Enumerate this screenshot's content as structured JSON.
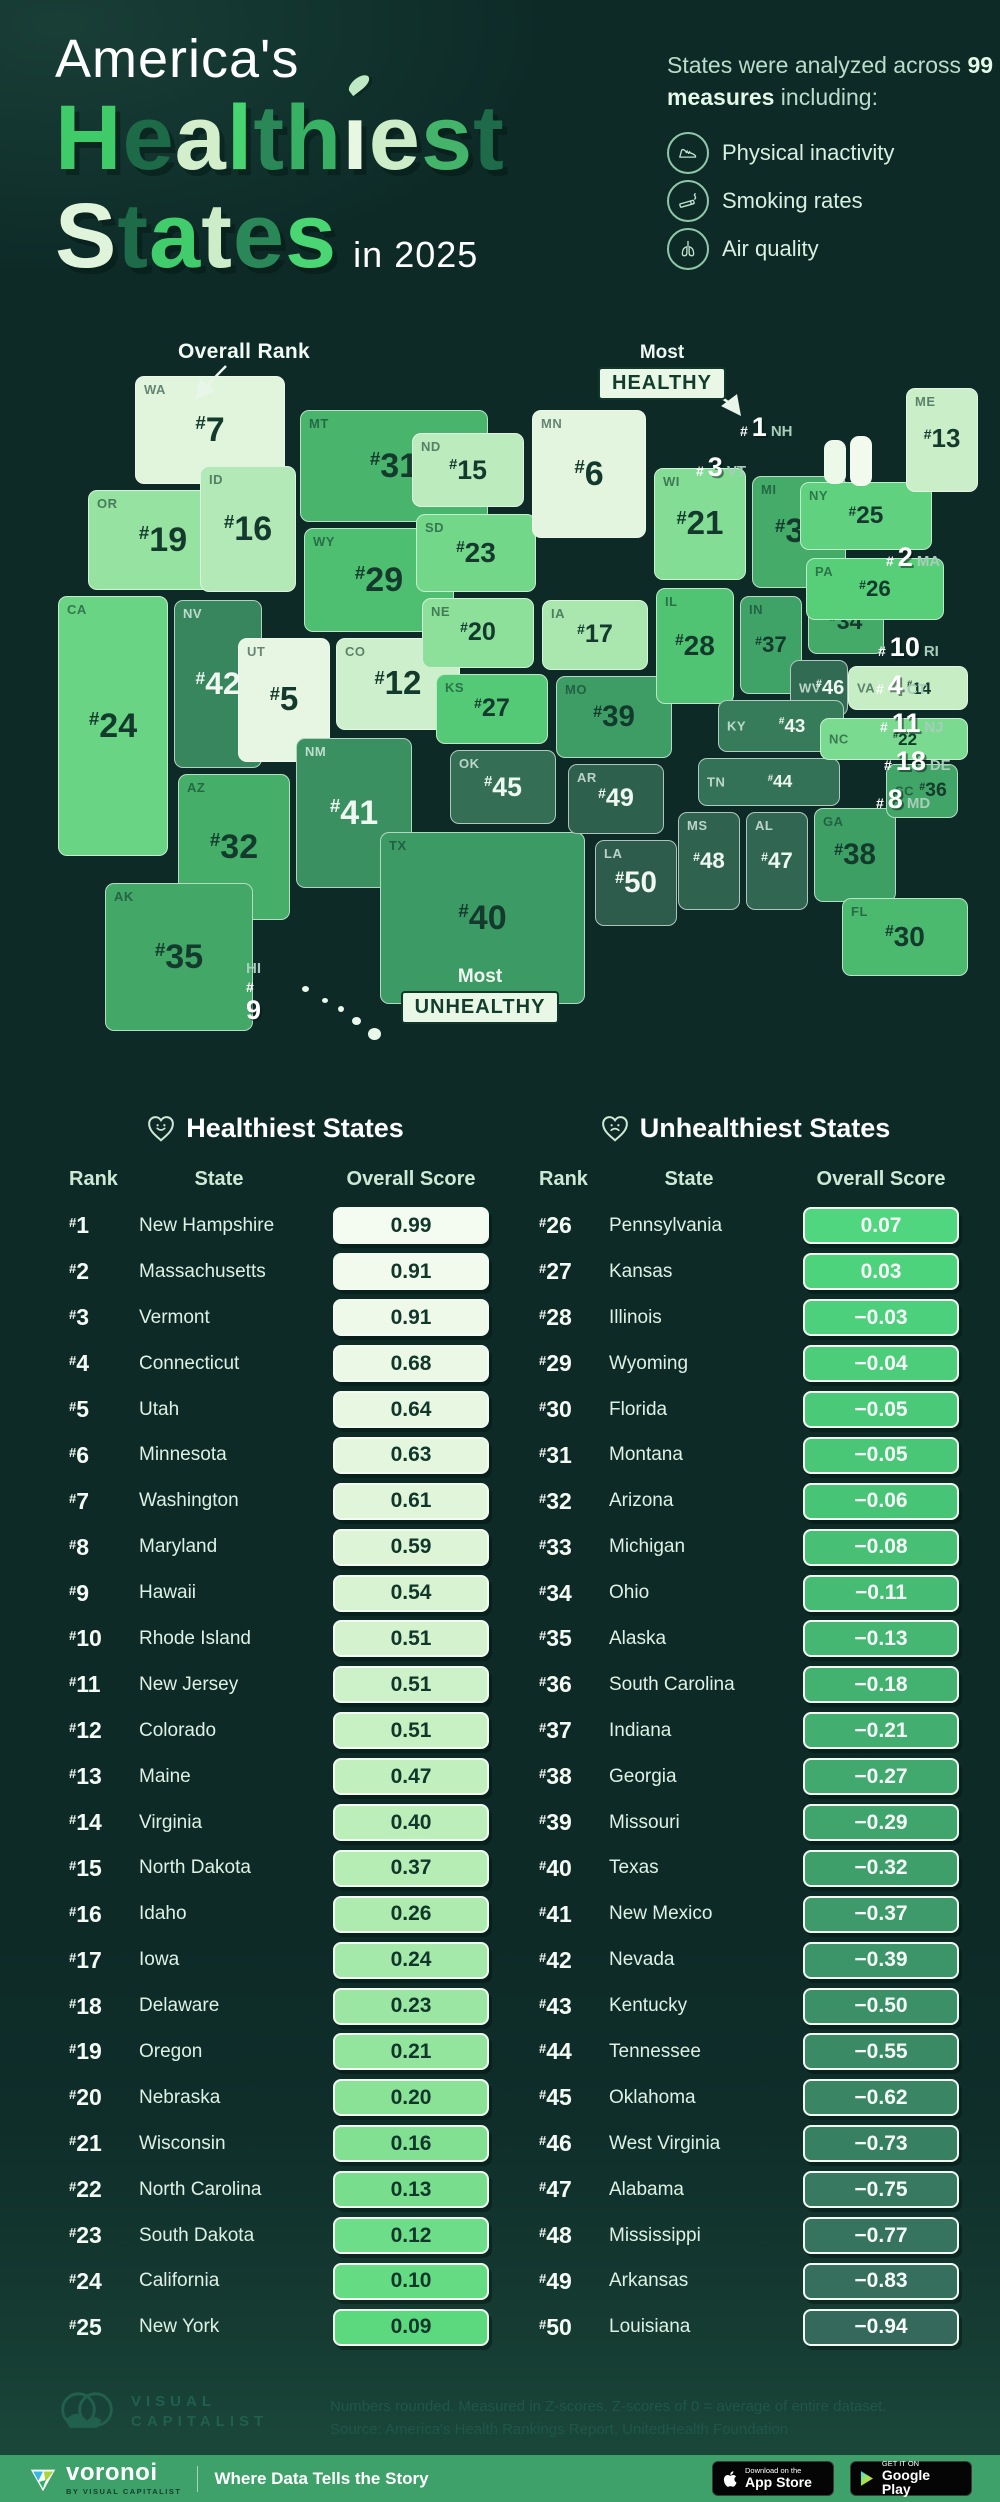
{
  "header": {
    "title_line1": "America's",
    "title_word1": "Healthiest",
    "title_word1_colors": [
      "#3ecb68",
      "#1c6a47",
      "#d2eecb",
      "#47d471",
      "#2a8757",
      "#38b164",
      "#e7f7e1",
      "#cdecc8",
      "#45b46b",
      "#1d6b49"
    ],
    "title_word2": "States",
    "title_word2_colors": [
      "#dff4da",
      "#1d6b49",
      "#41cd6b",
      "#cdecc8",
      "#2a8757",
      "#49d673"
    ],
    "title_suffix": "in 2025",
    "intro_pre": "States were analyzed across ",
    "intro_bold": "99 measures",
    "intro_post": " including:",
    "measures": [
      {
        "icon": "shoe-icon",
        "label": "Physical inactivity"
      },
      {
        "icon": "cigarette-icon",
        "label": "Smoking rates"
      },
      {
        "icon": "lungs-icon",
        "label": "Air quality"
      }
    ]
  },
  "map": {
    "rank_prefix": "#",
    "annotation": "Overall Rank",
    "most_healthy": {
      "line1": "Most",
      "line2": "HEALTHY"
    },
    "most_unhealthy": {
      "line1": "Most",
      "line2": "UNHEALTHY"
    }
  },
  "tables": {
    "healthy": {
      "title": "Healthiest States",
      "columns": [
        "Rank",
        "State",
        "Overall Score"
      ],
      "rows": [
        {
          "rank": 1,
          "state": "New Hampshire",
          "abbr": "NH",
          "score": "0.99"
        },
        {
          "rank": 2,
          "state": "Massachusetts",
          "abbr": "MA",
          "score": "0.91"
        },
        {
          "rank": 3,
          "state": "Vermont",
          "abbr": "VT",
          "score": "0.91"
        },
        {
          "rank": 4,
          "state": "Connecticut",
          "abbr": "CT",
          "score": "0.68"
        },
        {
          "rank": 5,
          "state": "Utah",
          "abbr": "UT",
          "score": "0.64"
        },
        {
          "rank": 6,
          "state": "Minnesota",
          "abbr": "MN",
          "score": "0.63"
        },
        {
          "rank": 7,
          "state": "Washington",
          "abbr": "WA",
          "score": "0.61"
        },
        {
          "rank": 8,
          "state": "Maryland",
          "abbr": "MD",
          "score": "0.59"
        },
        {
          "rank": 9,
          "state": "Hawaii",
          "abbr": "HI",
          "score": "0.54"
        },
        {
          "rank": 10,
          "state": "Rhode Island",
          "abbr": "RI",
          "score": "0.51"
        },
        {
          "rank": 11,
          "state": "New Jersey",
          "abbr": "NJ",
          "score": "0.51"
        },
        {
          "rank": 12,
          "state": "Colorado",
          "abbr": "CO",
          "score": "0.51"
        },
        {
          "rank": 13,
          "state": "Maine",
          "abbr": "ME",
          "score": "0.47"
        },
        {
          "rank": 14,
          "state": "Virginia",
          "abbr": "VA",
          "score": "0.40"
        },
        {
          "rank": 15,
          "state": "North Dakota",
          "abbr": "ND",
          "score": "0.37"
        },
        {
          "rank": 16,
          "state": "Idaho",
          "abbr": "ID",
          "score": "0.26"
        },
        {
          "rank": 17,
          "state": "Iowa",
          "abbr": "IA",
          "score": "0.24"
        },
        {
          "rank": 18,
          "state": "Delaware",
          "abbr": "DE",
          "score": "0.23"
        },
        {
          "rank": 19,
          "state": "Oregon",
          "abbr": "OR",
          "score": "0.21"
        },
        {
          "rank": 20,
          "state": "Nebraska",
          "abbr": "NE",
          "score": "0.20"
        },
        {
          "rank": 21,
          "state": "Wisconsin",
          "abbr": "WI",
          "score": "0.16"
        },
        {
          "rank": 22,
          "state": "North Carolina",
          "abbr": "NC",
          "score": "0.13"
        },
        {
          "rank": 23,
          "state": "South Dakota",
          "abbr": "SD",
          "score": "0.12"
        },
        {
          "rank": 24,
          "state": "California",
          "abbr": "CA",
          "score": "0.10"
        },
        {
          "rank": 25,
          "state": "New York",
          "abbr": "NY",
          "score": "0.09"
        }
      ]
    },
    "unhealthy": {
      "title": "Unhealthiest States",
      "columns": [
        "Rank",
        "State",
        "Overall Score"
      ],
      "rows": [
        {
          "rank": 26,
          "state": "Pennsylvania",
          "abbr": "PA",
          "score": "0.07"
        },
        {
          "rank": 27,
          "state": "Kansas",
          "abbr": "KS",
          "score": "0.03"
        },
        {
          "rank": 28,
          "state": "Illinois",
          "abbr": "IL",
          "score": "−0.03"
        },
        {
          "rank": 29,
          "state": "Wyoming",
          "abbr": "WY",
          "score": "−0.04"
        },
        {
          "rank": 30,
          "state": "Florida",
          "abbr": "FL",
          "score": "−0.05"
        },
        {
          "rank": 31,
          "state": "Montana",
          "abbr": "MT",
          "score": "−0.05"
        },
        {
          "rank": 32,
          "state": "Arizona",
          "abbr": "AZ",
          "score": "−0.06"
        },
        {
          "rank": 33,
          "state": "Michigan",
          "abbr": "MI",
          "score": "−0.08"
        },
        {
          "rank": 34,
          "state": "Ohio",
          "abbr": "OH",
          "score": "−0.11"
        },
        {
          "rank": 35,
          "state": "Alaska",
          "abbr": "AK",
          "score": "−0.13"
        },
        {
          "rank": 36,
          "state": "South Carolina",
          "abbr": "SC",
          "score": "−0.18"
        },
        {
          "rank": 37,
          "state": "Indiana",
          "abbr": "IN",
          "score": "−0.21"
        },
        {
          "rank": 38,
          "state": "Georgia",
          "abbr": "GA",
          "score": "−0.27"
        },
        {
          "rank": 39,
          "state": "Missouri",
          "abbr": "MO",
          "score": "−0.29"
        },
        {
          "rank": 40,
          "state": "Texas",
          "abbr": "TX",
          "score": "−0.32"
        },
        {
          "rank": 41,
          "state": "New Mexico",
          "abbr": "NM",
          "score": "−0.37"
        },
        {
          "rank": 42,
          "state": "Nevada",
          "abbr": "NV",
          "score": "−0.39"
        },
        {
          "rank": 43,
          "state": "Kentucky",
          "abbr": "KY",
          "score": "−0.50"
        },
        {
          "rank": 44,
          "state": "Tennessee",
          "abbr": "TN",
          "score": "−0.55"
        },
        {
          "rank": 45,
          "state": "Oklahoma",
          "abbr": "OK",
          "score": "−0.62"
        },
        {
          "rank": 46,
          "state": "West Virginia",
          "abbr": "WV",
          "score": "−0.73"
        },
        {
          "rank": 47,
          "state": "Alabama",
          "abbr": "AL",
          "score": "−0.75"
        },
        {
          "rank": 48,
          "state": "Mississippi",
          "abbr": "MS",
          "score": "−0.77"
        },
        {
          "rank": 49,
          "state": "Arkansas",
          "abbr": "AR",
          "score": "−0.83"
        },
        {
          "rank": 50,
          "state": "Louisiana",
          "abbr": "LA",
          "score": "−0.94"
        }
      ]
    }
  },
  "footer": {
    "logo_line1": "VISUAL",
    "logo_line2": "CAPITALIST",
    "note_line1": "Numbers rounded. Measured in Z-scores. Z-scores of 0 = average of entire dataset.",
    "note_line2": "Source: America's Health Rankings Report, UnitedHealth Foundation",
    "brand": "voronoi",
    "brand_sub": "BY VISUAL CAPITALIST",
    "tagline": "Where Data Tells the Story",
    "appstore_top": "Download on the",
    "appstore_bottom": "App Store",
    "gplay_top": "GET IT ON",
    "gplay_bottom": "Google Play"
  },
  "chart_data": {
    "type": "table",
    "title": "America's Healthiest States in 2025",
    "columns": [
      "Rank",
      "State",
      "Overall Score (Z-score)"
    ],
    "rows": [
      [
        1,
        "New Hampshire",
        0.99
      ],
      [
        2,
        "Massachusetts",
        0.91
      ],
      [
        3,
        "Vermont",
        0.91
      ],
      [
        4,
        "Connecticut",
        0.68
      ],
      [
        5,
        "Utah",
        0.64
      ],
      [
        6,
        "Minnesota",
        0.63
      ],
      [
        7,
        "Washington",
        0.61
      ],
      [
        8,
        "Maryland",
        0.59
      ],
      [
        9,
        "Hawaii",
        0.54
      ],
      [
        10,
        "Rhode Island",
        0.51
      ],
      [
        11,
        "New Jersey",
        0.51
      ],
      [
        12,
        "Colorado",
        0.51
      ],
      [
        13,
        "Maine",
        0.47
      ],
      [
        14,
        "Virginia",
        0.4
      ],
      [
        15,
        "North Dakota",
        0.37
      ],
      [
        16,
        "Idaho",
        0.26
      ],
      [
        17,
        "Iowa",
        0.24
      ],
      [
        18,
        "Delaware",
        0.23
      ],
      [
        19,
        "Oregon",
        0.21
      ],
      [
        20,
        "Nebraska",
        0.2
      ],
      [
        21,
        "Wisconsin",
        0.16
      ],
      [
        22,
        "North Carolina",
        0.13
      ],
      [
        23,
        "South Dakota",
        0.12
      ],
      [
        24,
        "California",
        0.1
      ],
      [
        25,
        "New York",
        0.09
      ],
      [
        26,
        "Pennsylvania",
        0.07
      ],
      [
        27,
        "Kansas",
        0.03
      ],
      [
        28,
        "Illinois",
        -0.03
      ],
      [
        29,
        "Wyoming",
        -0.04
      ],
      [
        30,
        "Florida",
        -0.05
      ],
      [
        31,
        "Montana",
        -0.05
      ],
      [
        32,
        "Arizona",
        -0.06
      ],
      [
        33,
        "Michigan",
        -0.08
      ],
      [
        34,
        "Ohio",
        -0.11
      ],
      [
        35,
        "Alaska",
        -0.13
      ],
      [
        36,
        "South Carolina",
        -0.18
      ],
      [
        37,
        "Indiana",
        -0.21
      ],
      [
        38,
        "Georgia",
        -0.27
      ],
      [
        39,
        "Missouri",
        -0.29
      ],
      [
        40,
        "Texas",
        -0.32
      ],
      [
        41,
        "New Mexico",
        -0.37
      ],
      [
        42,
        "Nevada",
        -0.39
      ],
      [
        43,
        "Kentucky",
        -0.5
      ],
      [
        44,
        "Tennessee",
        -0.55
      ],
      [
        45,
        "Oklahoma",
        -0.62
      ],
      [
        46,
        "West Virginia",
        -0.73
      ],
      [
        47,
        "Alabama",
        -0.75
      ],
      [
        48,
        "Mississippi",
        -0.77
      ],
      [
        49,
        "Arkansas",
        -0.83
      ],
      [
        50,
        "Louisiana",
        -0.94
      ]
    ],
    "notes": "Choropleth US map colored light (healthy, rank 1) to dark green (unhealthy, rank 50)"
  }
}
